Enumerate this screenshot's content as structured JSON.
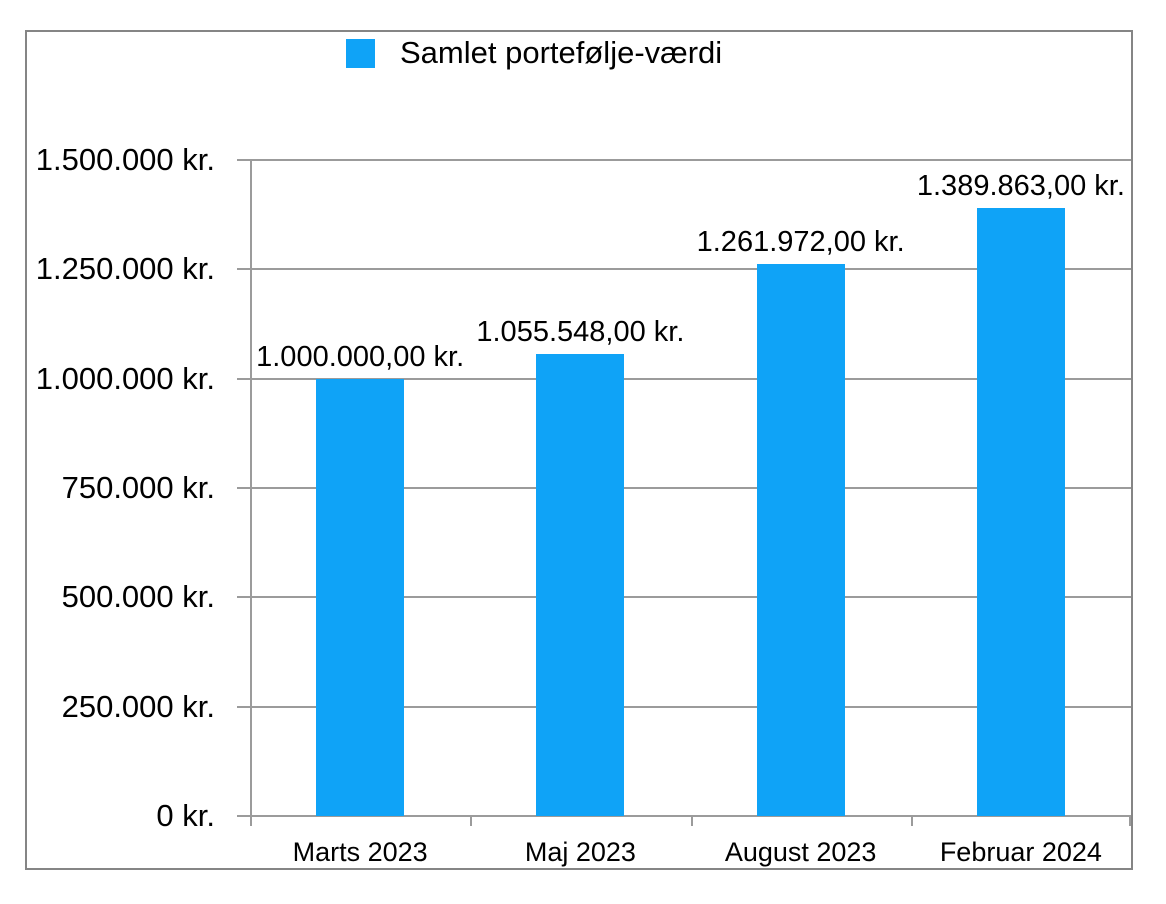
{
  "chart_data": {
    "type": "bar",
    "title": "",
    "legend": {
      "label": "Samlet portefølje-værdi",
      "position": "top"
    },
    "categories": [
      "Marts 2023",
      "Maj 2023",
      "August 2023",
      "Februar 2024"
    ],
    "series": [
      {
        "name": "Samlet portefølje-værdi",
        "values": [
          1000000.0,
          1055548.0,
          1261972.0,
          1389863.0
        ]
      }
    ],
    "value_labels": [
      "1.000.000,00 kr.",
      "1.055.548,00 kr.",
      "1.261.972,00 kr.",
      "1.389.863,00 kr."
    ],
    "xlabel": "",
    "ylabel": "",
    "y_axis": {
      "min": 0,
      "max": 1500000,
      "step": 250000,
      "tick_labels": [
        "1.500.000 kr.",
        "1.250.000 kr.",
        "1.000.000 kr.",
        "750.000 kr.",
        "500.000 kr.",
        "250.000 kr.",
        "0 kr."
      ]
    },
    "grid": true,
    "colors": {
      "bar": "#0FA3F7",
      "gridline": "#9b9b9b",
      "border": "#858585",
      "text": "#000000",
      "background": "#ffffff"
    }
  }
}
